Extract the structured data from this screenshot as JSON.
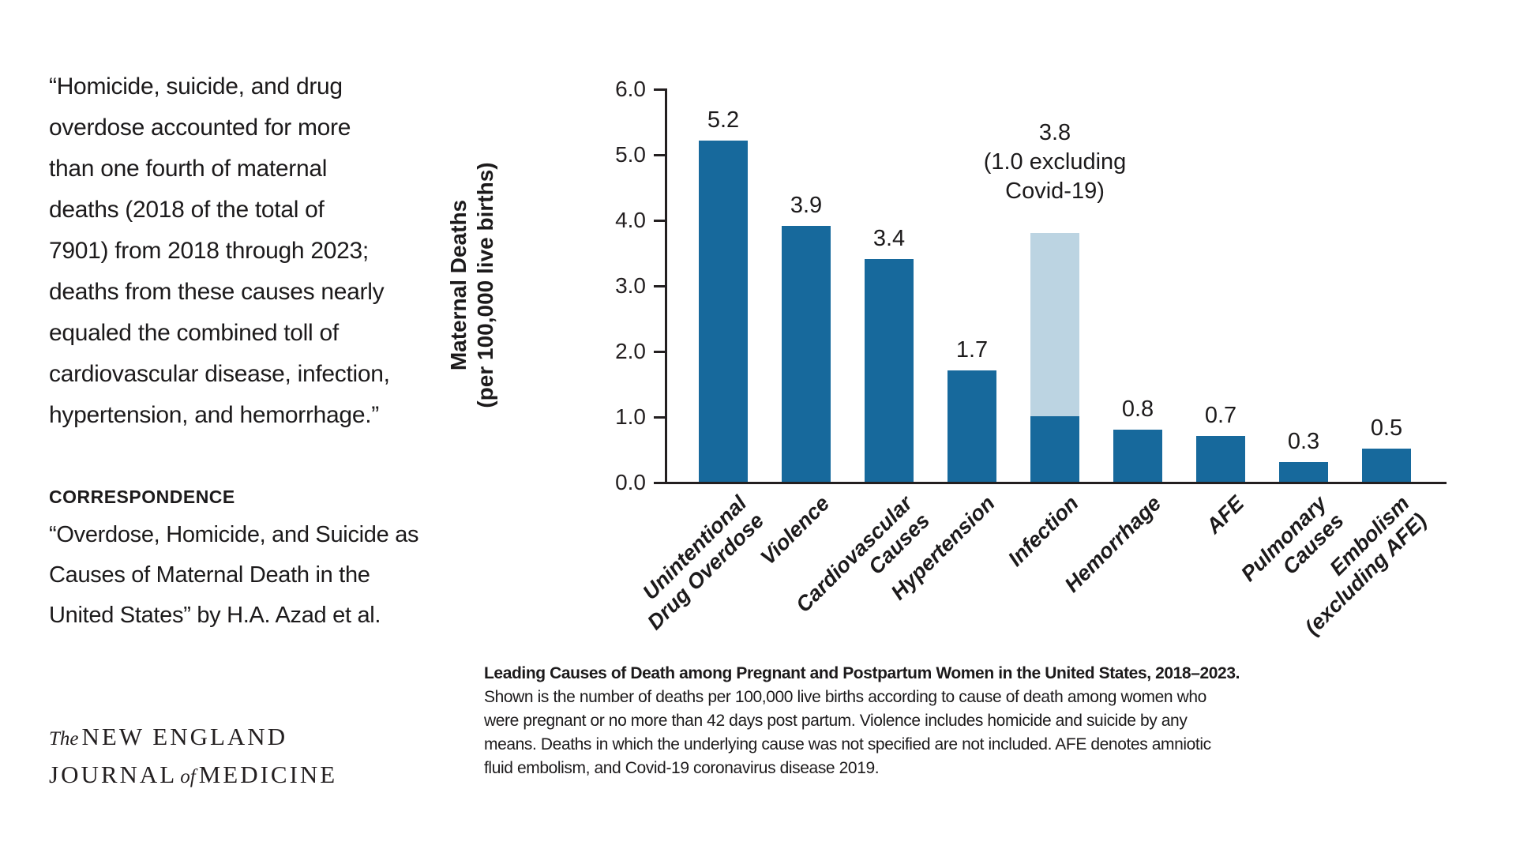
{
  "quote": {
    "lines": [
      "“Homicide, suicide, and drug",
      "overdose accounted for more",
      "than one fourth of maternal",
      "deaths (2018 of the total of",
      "7901) from 2018 through 2023;",
      "deaths from these causes nearly",
      "equaled the combined toll of",
      "cardiovascular disease, infection,",
      "hypertension, and hemorrhage.”"
    ]
  },
  "correspondence": {
    "heading": "CORRESPONDENCE",
    "reference_lines": [
      "“Overdose, Homicide, and Suicide as",
      "Causes of Maternal Death in the",
      "United States” by H.A. Azad et al."
    ]
  },
  "journal": {
    "word_the": "The",
    "word_new_england": "NEW ENGLAND",
    "word_journal": "JOURNAL",
    "word_of": "of",
    "word_medicine": "MEDICINE"
  },
  "chart_data": {
    "type": "bar",
    "title": "Leading Causes of Death among Pregnant and Postpartum Women in the United States, 2018–2023",
    "ylabel_lines": [
      "Maternal Deaths",
      "(per 100,000 live births)"
    ],
    "ylim": [
      0,
      6.0
    ],
    "yticks": [
      0.0,
      1.0,
      2.0,
      3.0,
      4.0,
      5.0,
      6.0
    ],
    "ytick_labels": [
      "0.0",
      "1.0",
      "2.0",
      "3.0",
      "4.0",
      "5.0",
      "6.0"
    ],
    "grid": false,
    "categories": [
      "Unintentional Drug Overdose",
      "Violence",
      "Cardiovascular Causes",
      "Hypertension",
      "Infection",
      "Hemorrhage",
      "AFE",
      "Pulmonary Causes",
      "Embolism (excluding AFE)"
    ],
    "category_label_lines": [
      [
        "Unintentional",
        "Drug Overdose"
      ],
      [
        "Violence"
      ],
      [
        "Cardiovascular",
        "Causes"
      ],
      [
        "Hypertension"
      ],
      [
        "Infection"
      ],
      [
        "Hemorrhage"
      ],
      [
        "AFE"
      ],
      [
        "Pulmonary",
        "Causes"
      ],
      [
        "Embolism",
        "(excluding AFE)"
      ]
    ],
    "values": [
      5.2,
      3.9,
      3.4,
      1.7,
      3.8,
      0.8,
      0.7,
      0.3,
      0.5
    ],
    "value_labels": [
      "5.2",
      "3.9",
      "3.4",
      "1.7",
      "3.8",
      "0.8",
      "0.7",
      "0.3",
      "0.5"
    ],
    "stacked_bar": {
      "category": "Infection",
      "category_index": 4,
      "total": 3.8,
      "dark_value": 1.0,
      "annotation_lines": [
        "3.8",
        "(1.0 excluding",
        "Covid-19)"
      ]
    },
    "colors": {
      "bar": "#17699c",
      "bar_light": "#bcd4e2",
      "axis": "#231f20"
    }
  },
  "caption": {
    "lines": [
      "Leading Causes of Death among Pregnant and Postpartum Women in the United States, 2018–2023.",
      "Shown is the number of deaths per 100,000 live births according to cause of death among women who",
      "were pregnant or no more than 42 days post partum. Violence includes homicide and suicide by any",
      "means. Deaths in which the underlying cause was not specified are not included. AFE denotes amniotic",
      "fluid embolism, and Covid-19 coronavirus disease 2019."
    ]
  }
}
